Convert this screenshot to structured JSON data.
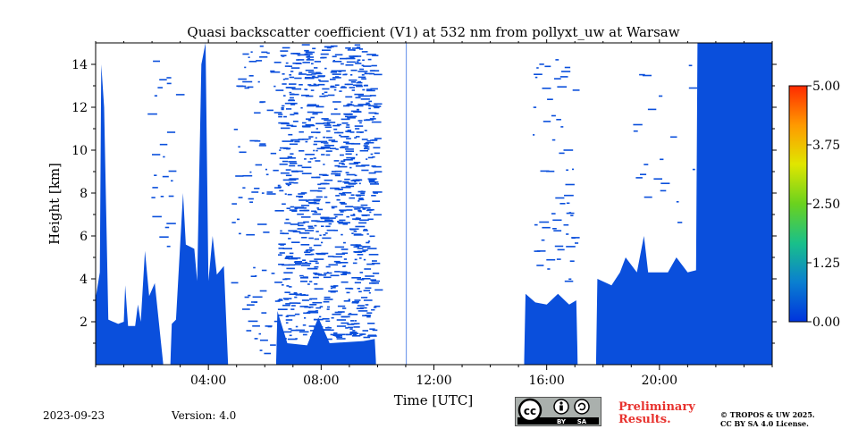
{
  "chart_data": {
    "type": "heatmap",
    "title": "Quasi backscatter coefficient (V1) at 532 nm from pollyxt_uw at Warsaw",
    "xlabel": "Time [UTC]",
    "ylabel": "Height [km]",
    "xlim_hours": [
      0,
      24
    ],
    "ylim_km": [
      0,
      15
    ],
    "x_ticks": [
      {
        "value": 4,
        "label": "04:00"
      },
      {
        "value": 8,
        "label": "08:00"
      },
      {
        "value": 12,
        "label": "12:00"
      },
      {
        "value": 16,
        "label": "16:00"
      },
      {
        "value": 20,
        "label": "20:00"
      }
    ],
    "y_ticks": [
      {
        "value": 2,
        "label": "2"
      },
      {
        "value": 4,
        "label": "4"
      },
      {
        "value": 6,
        "label": "6"
      },
      {
        "value": 8,
        "label": "8"
      },
      {
        "value": 10,
        "label": "10"
      },
      {
        "value": 12,
        "label": "12"
      },
      {
        "value": 14,
        "label": "14"
      }
    ],
    "colorbar": {
      "range": [
        0.0,
        5.0
      ],
      "ticks": [
        "0.00",
        "1.25",
        "2.50",
        "3.75",
        "5.00"
      ],
      "colors": [
        "#0033dd",
        "#0a7fd0",
        "#19c08a",
        "#6ad21e",
        "#e0e600",
        "#ff9a00",
        "#ff2a00"
      ]
    },
    "fill_color": "#0a4fdc",
    "signal_profile": [
      {
        "t": 0.0,
        "h": 3.1
      },
      {
        "t": 0.15,
        "h": 4.3
      },
      {
        "t": 0.2,
        "h": 14.0
      },
      {
        "t": 0.3,
        "h": 12.0
      },
      {
        "t": 0.45,
        "h": 2.1
      },
      {
        "t": 0.8,
        "h": 1.9
      },
      {
        "t": 1.0,
        "h": 2.0
      },
      {
        "t": 1.05,
        "h": 3.7
      },
      {
        "t": 1.15,
        "h": 1.8
      },
      {
        "t": 1.4,
        "h": 1.8
      },
      {
        "t": 1.5,
        "h": 2.8
      },
      {
        "t": 1.6,
        "h": 2.0
      },
      {
        "t": 1.75,
        "h": 5.3
      },
      {
        "t": 1.9,
        "h": 3.2
      },
      {
        "t": 2.1,
        "h": 3.8
      },
      {
        "t": 2.4,
        "h": 0.0
      },
      {
        "t": 2.65,
        "h": 0.0
      },
      {
        "t": 2.7,
        "h": 1.9
      },
      {
        "t": 2.85,
        "h": 2.1
      },
      {
        "t": 3.1,
        "h": 8.0
      },
      {
        "t": 3.2,
        "h": 5.6
      },
      {
        "t": 3.5,
        "h": 5.4
      },
      {
        "t": 3.6,
        "h": 3.9
      },
      {
        "t": 3.75,
        "h": 14.0
      },
      {
        "t": 3.9,
        "h": 15.0
      },
      {
        "t": 4.0,
        "h": 3.9
      },
      {
        "t": 4.15,
        "h": 6.0
      },
      {
        "t": 4.3,
        "h": 4.2
      },
      {
        "t": 4.55,
        "h": 4.6
      },
      {
        "t": 4.7,
        "h": 0.0
      },
      {
        "t": 6.4,
        "h": 0.0
      },
      {
        "t": 6.45,
        "h": 2.5
      },
      {
        "t": 6.8,
        "h": 1.0
      },
      {
        "t": 7.5,
        "h": 0.9
      },
      {
        "t": 7.9,
        "h": 2.2
      },
      {
        "t": 8.3,
        "h": 1.0
      },
      {
        "t": 9.5,
        "h": 1.1
      },
      {
        "t": 9.9,
        "h": 1.2
      },
      {
        "t": 9.95,
        "h": 0.0
      },
      {
        "t": 15.2,
        "h": 0.0
      },
      {
        "t": 15.25,
        "h": 3.3
      },
      {
        "t": 15.6,
        "h": 2.9
      },
      {
        "t": 16.0,
        "h": 2.8
      },
      {
        "t": 16.4,
        "h": 3.3
      },
      {
        "t": 16.8,
        "h": 2.8
      },
      {
        "t": 17.05,
        "h": 3.0
      },
      {
        "t": 17.1,
        "h": 0.0
      },
      {
        "t": 17.75,
        "h": 0.0
      },
      {
        "t": 17.8,
        "h": 4.0
      },
      {
        "t": 18.3,
        "h": 3.7
      },
      {
        "t": 18.6,
        "h": 4.3
      },
      {
        "t": 18.8,
        "h": 5.0
      },
      {
        "t": 19.2,
        "h": 4.3
      },
      {
        "t": 19.45,
        "h": 6.0
      },
      {
        "t": 19.6,
        "h": 4.3
      },
      {
        "t": 20.3,
        "h": 4.3
      },
      {
        "t": 20.6,
        "h": 5.0
      },
      {
        "t": 21.0,
        "h": 4.3
      },
      {
        "t": 21.3,
        "h": 4.4
      },
      {
        "t": 21.35,
        "h": 15.0
      },
      {
        "t": 24.0,
        "h": 15.0
      }
    ],
    "gaps": [
      [
        2.4,
        2.65
      ],
      [
        4.75,
        5.1
      ],
      [
        5.5,
        5.6
      ],
      [
        6.2,
        6.4
      ],
      [
        9.95,
        15.2
      ],
      [
        17.1,
        17.75
      ]
    ]
  },
  "footer": {
    "date": "2023-09-23",
    "version": "Version: 4.0",
    "license_badge": {
      "cc": "cc",
      "by": "BY",
      "sa": "SA"
    },
    "preliminary": [
      "Preliminary",
      "Results."
    ],
    "copyright": [
      "© TROPOS & UW 2025.",
      "CC BY SA 4.0 License."
    ]
  }
}
